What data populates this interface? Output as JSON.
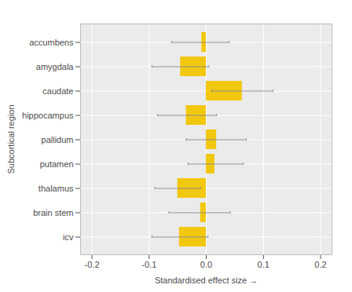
{
  "chart_data": {
    "type": "bar",
    "orientation": "horizontal",
    "xlabel": "Standardised effect size",
    "ylabel": "Subcortical region",
    "categories": [
      "accumbens",
      "amygdala",
      "caudate",
      "hippocampus",
      "pallidum",
      "putamen",
      "thalamus",
      "brain stem",
      "icv"
    ],
    "values": [
      -0.008,
      -0.045,
      0.063,
      -0.035,
      0.018,
      0.015,
      -0.05,
      -0.01,
      -0.047
    ],
    "ci_lower": [
      -0.06,
      -0.095,
      0.01,
      -0.085,
      -0.035,
      -0.032,
      -0.09,
      -0.065,
      -0.095
    ],
    "ci_upper": [
      0.04,
      0.005,
      0.117,
      0.018,
      0.07,
      0.065,
      -0.01,
      0.042,
      0.003
    ],
    "color": "#f2c80f",
    "xlim": [
      -0.22,
      0.22
    ],
    "xticks": [
      -0.2,
      -0.1,
      {
        "value": 0,
        "label": "0.0"
      },
      0.1,
      0.2
    ],
    "grid": true
  }
}
